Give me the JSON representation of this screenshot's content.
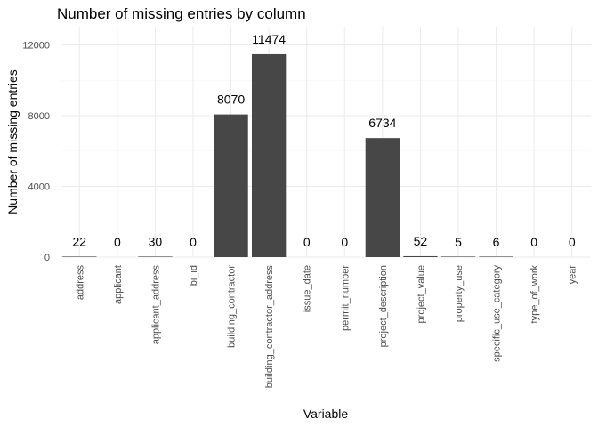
{
  "chart_data": {
    "type": "bar",
    "title": "Number of missing entries by column",
    "xlabel": "Variable",
    "ylabel": "Number of missing entries",
    "categories": [
      "address",
      "applicant",
      "applicant_address",
      "bi_id",
      "building_contractor",
      "building_contractor_address",
      "issue_date",
      "permit_number",
      "project_description",
      "project_value",
      "property_use",
      "specific_use_category",
      "type_of_work",
      "year"
    ],
    "values": [
      22,
      0,
      30,
      0,
      8070,
      11474,
      0,
      0,
      6734,
      52,
      5,
      6,
      0,
      0
    ],
    "data_labels": [
      "22",
      "0",
      "30",
      "0",
      "8070",
      "11474",
      "0",
      "0",
      "6734",
      "52",
      "5",
      "6",
      "0",
      "0"
    ],
    "yticks": [
      0,
      4000,
      8000,
      12000
    ],
    "ytick_labels": [
      "0",
      "4000",
      "8000",
      "12000"
    ],
    "ylim": [
      0,
      13000
    ],
    "grid": true,
    "bar_color": "#474747"
  }
}
